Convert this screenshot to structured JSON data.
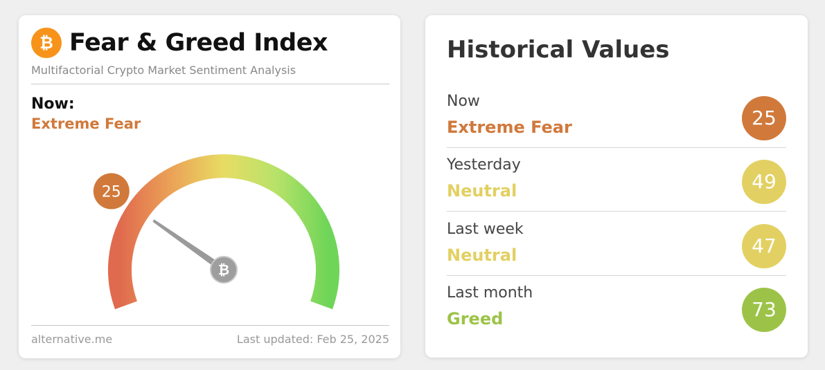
{
  "left_card": {
    "title": "Fear & Greed Index",
    "subtitle": "Multifactorial Crypto Market Sentiment Analysis",
    "now_label": "Now:",
    "now_status": "Extreme Fear",
    "now_value": 25,
    "footer_source": "alternative.me",
    "footer_updated": "Last updated: Feb 25, 2025",
    "logo_icon": "bitcoin-icon",
    "gauge_value": 25,
    "colors": {
      "fear": "#d0793b",
      "gauge_low": "#e06a4e",
      "gauge_mid": "#e6dc62",
      "gauge_high": "#6fd558"
    }
  },
  "historical": {
    "title": "Historical Values",
    "rows": [
      {
        "period": "Now",
        "status": "Extreme Fear",
        "value": "25",
        "color": "#d0793b",
        "text_color": "#d0793b"
      },
      {
        "period": "Yesterday",
        "status": "Neutral",
        "value": "49",
        "color": "#e2d062",
        "text_color": "#e2d062"
      },
      {
        "period": "Last week",
        "status": "Neutral",
        "value": "47",
        "color": "#e2d062",
        "text_color": "#e2d062"
      },
      {
        "period": "Last month",
        "status": "Greed",
        "value": "73",
        "color": "#9cc348",
        "text_color": "#9cc348"
      }
    ]
  }
}
